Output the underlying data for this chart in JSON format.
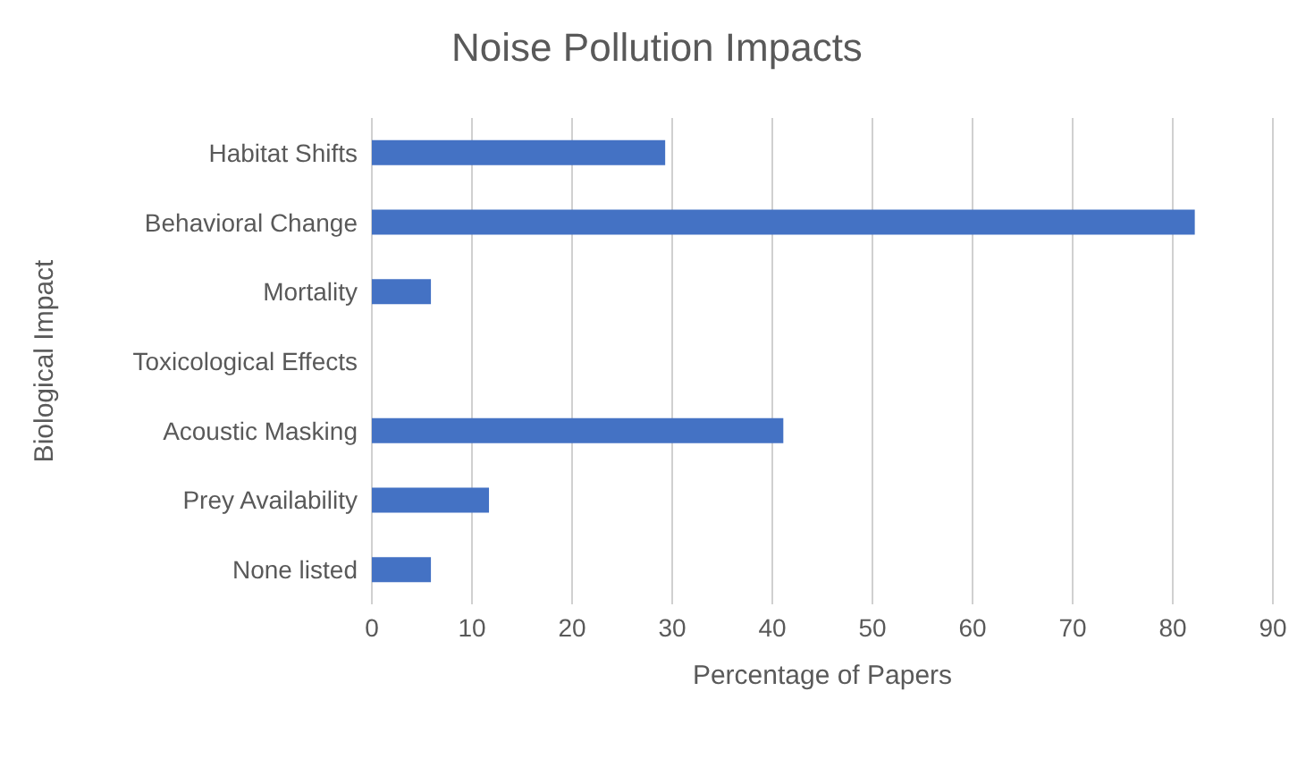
{
  "chart_data": {
    "type": "bar",
    "orientation": "horizontal",
    "title": "Noise Pollution Impacts",
    "xlabel": "Percentage of Papers",
    "ylabel": "Biological Impact",
    "categories": [
      "Habitat Shifts",
      "Behavioral Change",
      "Mortality",
      "Toxicological Effects",
      "Acoustic Masking",
      "Prey Availability",
      "None listed"
    ],
    "values": [
      29.3,
      82.2,
      5.9,
      0,
      41.1,
      11.7,
      5.9
    ],
    "color": "#4472c4",
    "xlim": [
      0,
      90
    ],
    "xticks": [
      0,
      10,
      20,
      30,
      40,
      50,
      60,
      70,
      80,
      90
    ],
    "grid": "x"
  }
}
